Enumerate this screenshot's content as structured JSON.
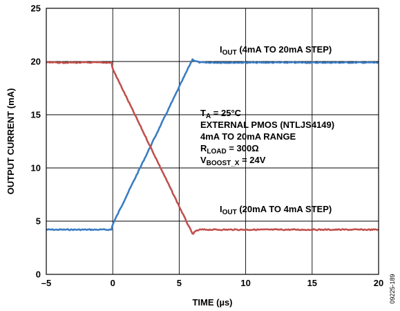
{
  "chart_data": {
    "type": "line",
    "xlabel": "TIME (µs)",
    "ylabel": "OUTPUT CURRENT (mA)",
    "xlim": [
      -5,
      20
    ],
    "ylim": [
      0,
      25
    ],
    "xticks": [
      -5,
      0,
      5,
      10,
      15,
      20
    ],
    "xtick_labels": [
      "–5",
      "0",
      "5",
      "10",
      "15",
      "20"
    ],
    "yticks": [
      0,
      5,
      10,
      15,
      20,
      25
    ],
    "ytick_labels": [
      "0",
      "5",
      "10",
      "15",
      "20",
      "25"
    ],
    "grid": true,
    "series": [
      {
        "name": "4mA TO 20mA STEP",
        "color": "#3a7cc3",
        "x": [
          -5,
          -0.1,
          0,
          6.0,
          6.3,
          6.6,
          20
        ],
        "y": [
          4.2,
          4.2,
          4.7,
          20.2,
          20.0,
          19.9,
          19.9
        ]
      },
      {
        "name": "20mA TO 4mA STEP",
        "color": "#c0504d",
        "x": [
          -5,
          -0.1,
          0,
          6.0,
          6.3,
          6.6,
          20
        ],
        "y": [
          19.9,
          19.9,
          19.3,
          3.8,
          4.1,
          4.2,
          4.2
        ]
      }
    ],
    "annotations": {
      "label_up": {
        "main": "I",
        "sub": "OUT",
        "rest": " (4mA TO 20mA STEP)"
      },
      "label_down": {
        "main": "I",
        "sub": "OUT",
        "rest": " (20mA TO 4mA STEP)"
      },
      "conditions": [
        {
          "main": "T",
          "sub": "A",
          "rest": " = 25°C"
        },
        {
          "main": "EXTERNAL PMOS (NTLJS4149)",
          "sub": "",
          "rest": ""
        },
        {
          "main": "4mA TO 20mA RANGE",
          "sub": "",
          "rest": ""
        },
        {
          "main": "R",
          "sub": "LOAD",
          "rest": " = 300Ω"
        },
        {
          "main": "V",
          "sub": "BOOST_X",
          "rest": " = 24V"
        }
      ]
    },
    "figure_id": "09225-189"
  }
}
